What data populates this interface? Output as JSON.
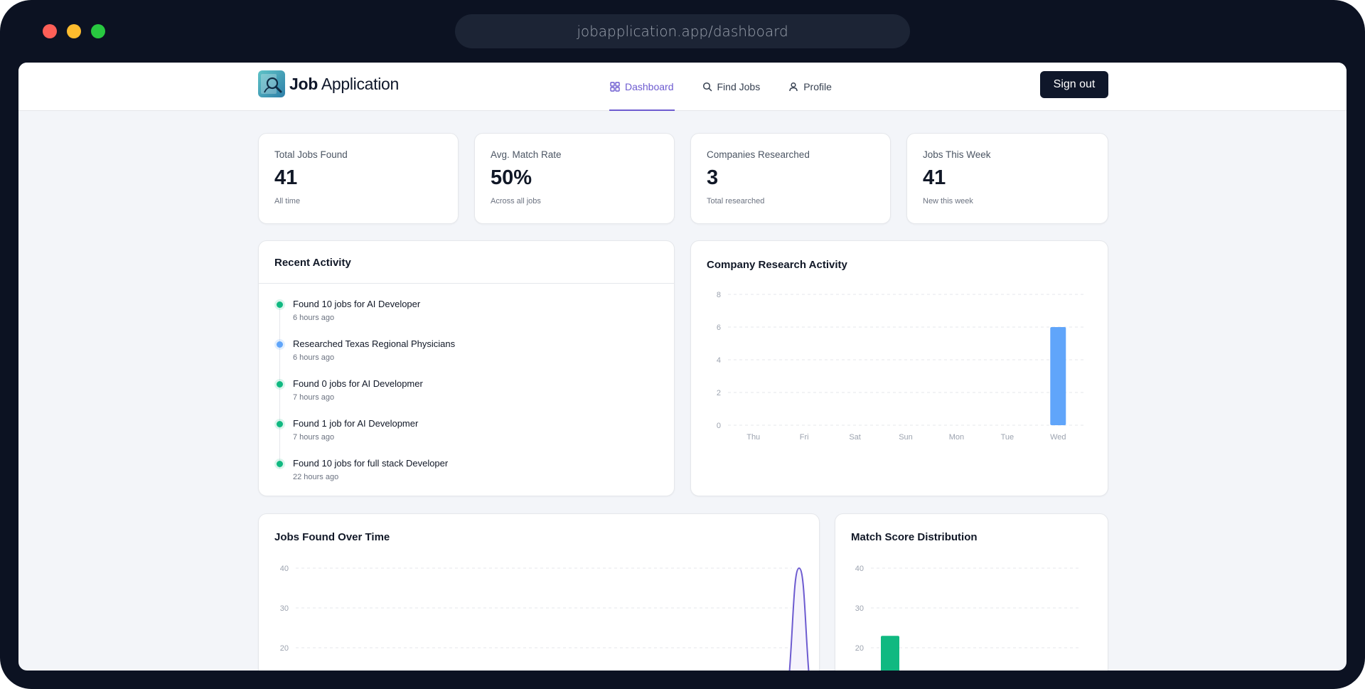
{
  "browser": {
    "url": "jobapplication.app/dashboard"
  },
  "header": {
    "logo_bold": "Job",
    "logo_regular": " Application",
    "nav": [
      {
        "label": "Dashboard",
        "icon": "grid-icon",
        "active": true
      },
      {
        "label": "Find Jobs",
        "icon": "search-icon",
        "active": false
      },
      {
        "label": "Profile",
        "icon": "user-icon",
        "active": false
      }
    ],
    "signout_label": "Sign out"
  },
  "stats": [
    {
      "label": "Total Jobs Found",
      "value": "41",
      "sub": "All time"
    },
    {
      "label": "Avg. Match Rate",
      "value": "50%",
      "sub": "Across all jobs"
    },
    {
      "label": "Companies Researched",
      "value": "3",
      "sub": "Total researched"
    },
    {
      "label": "Jobs This Week",
      "value": "41",
      "sub": "New this week"
    }
  ],
  "activity": {
    "title": "Recent Activity",
    "items": [
      {
        "text": "Found 10 jobs for AI Developer",
        "time": "6 hours ago",
        "kind": "green"
      },
      {
        "text": "Researched Texas Regional Physicians",
        "time": "6 hours ago",
        "kind": "blue"
      },
      {
        "text": "Found 0 jobs for AI Developmer",
        "time": "7 hours ago",
        "kind": "green"
      },
      {
        "text": "Found 1 job for AI Developmer",
        "time": "7 hours ago",
        "kind": "green"
      },
      {
        "text": "Found 10 jobs for full stack Developer",
        "time": "22 hours ago",
        "kind": "green"
      }
    ]
  },
  "colors": {
    "accent": "#6d5bd0",
    "research_bar": "#60a5fa",
    "match_bar": "#10b981"
  },
  "chart_data": [
    {
      "title": "Company Research Activity",
      "type": "bar",
      "categories": [
        "Thu",
        "Fri",
        "Sat",
        "Sun",
        "Mon",
        "Tue",
        "Wed"
      ],
      "values": [
        0,
        0,
        0,
        0,
        0,
        0,
        6
      ],
      "yticks": [
        0,
        2,
        4,
        6,
        8
      ],
      "ylim": [
        0,
        8
      ],
      "grid": true
    },
    {
      "title": "Jobs Found Over Time",
      "type": "area",
      "yticks": [
        20,
        30,
        40
      ],
      "ylim": [
        0,
        40
      ],
      "peak_value": 40,
      "grid": true
    },
    {
      "title": "Match Score Distribution",
      "type": "bar",
      "yticks": [
        20,
        30,
        40
      ],
      "ylim": [
        0,
        40
      ],
      "first_bar_value": 23,
      "grid": true
    }
  ]
}
